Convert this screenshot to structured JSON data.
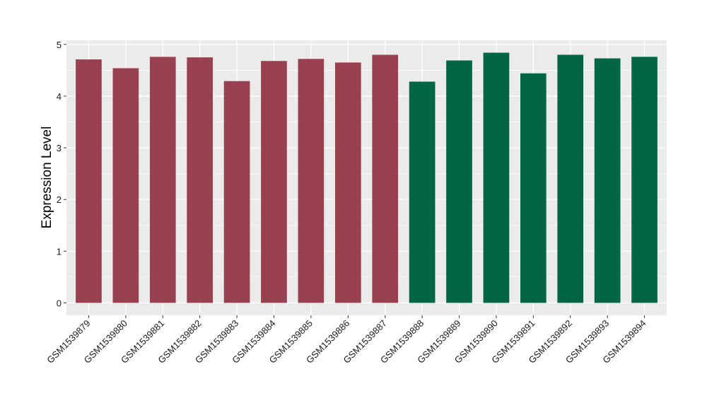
{
  "chart_data": {
    "type": "bar",
    "ylabel": "Expression Level",
    "xlabel": "",
    "title": "",
    "ylim": [
      -0.24,
      5.08
    ],
    "yticks": [
      0,
      1,
      2,
      3,
      4,
      5
    ],
    "grid": true,
    "legend": "none",
    "categories": [
      "GSM1539879",
      "GSM1539880",
      "GSM1539881",
      "GSM1539882",
      "GSM1539883",
      "GSM1539884",
      "GSM1539885",
      "GSM1539886",
      "GSM1539887",
      "GSM1539888",
      "GSM1539889",
      "GSM1539890",
      "GSM1539891",
      "GSM1539892",
      "GSM1539893",
      "GSM1539894"
    ],
    "values": [
      4.71,
      4.54,
      4.76,
      4.75,
      4.29,
      4.68,
      4.72,
      4.65,
      4.8,
      4.28,
      4.69,
      4.84,
      4.44,
      4.8,
      4.73,
      4.76
    ],
    "groups": [
      0,
      0,
      0,
      0,
      0,
      0,
      0,
      0,
      0,
      1,
      1,
      1,
      1,
      1,
      1,
      1
    ],
    "colors": [
      "#99414f",
      "#006643"
    ],
    "panel_bg": "#ebebeb",
    "grid_color": "#ffffff"
  }
}
